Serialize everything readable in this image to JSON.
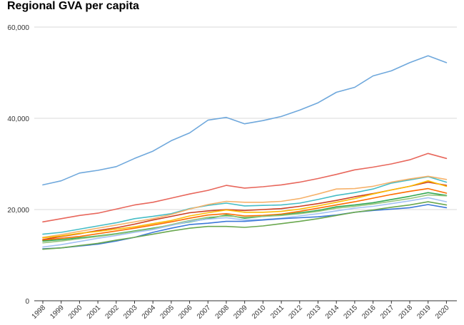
{
  "chart_data": {
    "type": "line",
    "title": "Regional GVA per capita",
    "xlabel": "",
    "ylabel": "",
    "categories": [
      "1998",
      "1999",
      "2000",
      "2001",
      "2002",
      "2003",
      "2004",
      "2005",
      "2006",
      "2007",
      "2008",
      "2009",
      "2010",
      "2011",
      "2012",
      "2013",
      "2014",
      "2015",
      "2016",
      "2017",
      "2018",
      "2019",
      "2020"
    ],
    "ylim": [
      0,
      60000
    ],
    "yticks": [
      0,
      20000,
      40000,
      60000
    ],
    "ytick_labels": [
      "0",
      "20,000",
      "40,000",
      "60,000"
    ],
    "grid": true,
    "legend": "none",
    "series": [
      {
        "color": "#6fa8dc",
        "values": [
          25400,
          26300,
          28000,
          28600,
          29400,
          31200,
          32800,
          35100,
          36800,
          39600,
          40200,
          38800,
          39500,
          40400,
          41800,
          43400,
          45700,
          46800,
          49300,
          50400,
          52200,
          53700,
          52200
        ]
      },
      {
        "color": "#e8675c",
        "values": [
          17300,
          18000,
          18700,
          19200,
          20100,
          21000,
          21600,
          22500,
          23400,
          24200,
          25300,
          24700,
          25000,
          25400,
          26000,
          26800,
          27700,
          28700,
          29300,
          30000,
          30900,
          32300,
          31200
        ]
      },
      {
        "color": "#46bdc6",
        "values": [
          14600,
          15000,
          15700,
          16400,
          17100,
          18000,
          18500,
          19100,
          20200,
          20900,
          21400,
          20800,
          20900,
          21000,
          21400,
          22200,
          23100,
          23700,
          24500,
          25800,
          26500,
          27200,
          26000
        ]
      },
      {
        "color": "#f6b26b",
        "values": [
          13900,
          14500,
          15200,
          15900,
          16600,
          17300,
          18000,
          18900,
          20100,
          21100,
          21800,
          21600,
          21600,
          21800,
          22400,
          23400,
          24500,
          24600,
          25100,
          26000,
          26700,
          27300,
          26600
        ]
      },
      {
        "color": "#cc4125",
        "values": [
          13400,
          14100,
          14700,
          15400,
          16000,
          16800,
          17700,
          18500,
          19300,
          19700,
          20000,
          19800,
          20000,
          20200,
          20700,
          21300,
          22000,
          22800,
          23500,
          24300,
          25100,
          26000,
          25300
        ]
      },
      {
        "color": "#fbbc04",
        "values": [
          13800,
          14200,
          14800,
          15200,
          15700,
          16200,
          16900,
          17600,
          18600,
          19300,
          19900,
          19400,
          19400,
          19600,
          20100,
          20800,
          21600,
          22400,
          23400,
          24300,
          25100,
          26300,
          25100
        ]
      },
      {
        "color": "#ff6d01",
        "values": [
          13300,
          13700,
          14100,
          14700,
          15300,
          15900,
          16600,
          17300,
          18100,
          18800,
          19100,
          18600,
          18700,
          19000,
          19600,
          20300,
          21000,
          21700,
          22500,
          23300,
          24000,
          24600,
          23600
        ]
      },
      {
        "color": "#34a853",
        "values": [
          13100,
          13400,
          13800,
          14200,
          14700,
          15300,
          15900,
          16600,
          17300,
          18000,
          18800,
          18100,
          18500,
          18800,
          19300,
          19800,
          20600,
          21000,
          21500,
          22200,
          22900,
          23700,
          23100
        ]
      },
      {
        "color": "#93c47d",
        "values": [
          12700,
          13100,
          13600,
          14100,
          14600,
          15200,
          15800,
          16700,
          17600,
          18300,
          18600,
          18300,
          18500,
          18700,
          19100,
          19600,
          20300,
          20700,
          21200,
          21800,
          22400,
          23200,
          23000
        ]
      },
      {
        "color": "#a4c2f4",
        "values": [
          11800,
          12300,
          13000,
          13700,
          14300,
          15000,
          15600,
          16500,
          17400,
          17900,
          18200,
          17700,
          17800,
          18100,
          18600,
          19100,
          19700,
          20300,
          20700,
          21300,
          21900,
          22600,
          21700
        ]
      },
      {
        "color": "#3c78d8",
        "values": [
          11400,
          11600,
          12000,
          12400,
          13100,
          13900,
          15000,
          15900,
          16700,
          17000,
          17400,
          17400,
          17700,
          18000,
          18200,
          18400,
          18800,
          19400,
          19800,
          20100,
          20400,
          21100,
          20400
        ]
      },
      {
        "color": "#6aa84f",
        "values": [
          11300,
          11600,
          12100,
          12600,
          13300,
          13900,
          14600,
          15300,
          15900,
          16300,
          16300,
          16100,
          16400,
          16900,
          17400,
          18000,
          18700,
          19400,
          19900,
          20500,
          21000,
          21700,
          21000
        ]
      }
    ]
  }
}
